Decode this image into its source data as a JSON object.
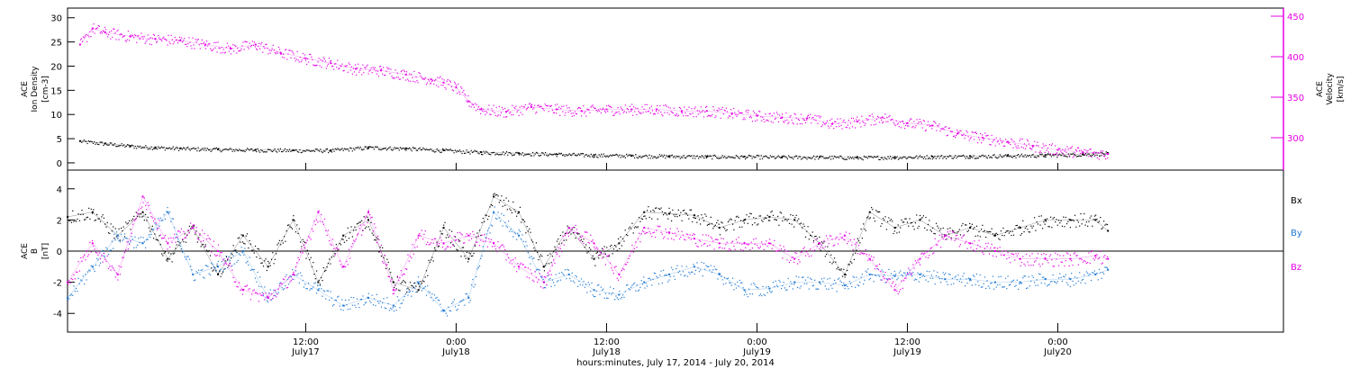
{
  "x_axis": {
    "label": "hours:minutes, July 17, 2014 - July 20, 2014",
    "range_hours": [
      -7,
      90
    ],
    "ticks": [
      {
        "hour": 12,
        "time": "12:00",
        "date": "July17"
      },
      {
        "hour": 24,
        "time": "0:00",
        "date": "July18"
      },
      {
        "hour": 36,
        "time": "12:00",
        "date": "July18"
      },
      {
        "hour": 48,
        "time": "0:00",
        "date": "July19"
      },
      {
        "hour": 60,
        "time": "12:00",
        "date": "July19"
      },
      {
        "hour": 72,
        "time": "0:00",
        "date": "July20"
      }
    ]
  },
  "chart_data": [
    {
      "type": "scatter",
      "panel": "plasma",
      "ylabel_left": [
        "ACE",
        "Ion Density",
        "[cm-3]"
      ],
      "ylabel_right": [
        "ACE",
        "Velocity",
        "[km/s]"
      ],
      "ylim_left": [
        -1.5,
        32
      ],
      "yticks_left": [
        0,
        5,
        10,
        15,
        20,
        25,
        30
      ],
      "ylim_right": [
        260,
        460
      ],
      "yticks_right": [
        300,
        350,
        400,
        450
      ],
      "series": [
        {
          "axis": "left",
          "color": "#000000",
          "x_hours": [
            -6,
            -4,
            -2,
            0,
            2,
            5,
            8,
            11,
            14,
            17,
            20,
            23,
            26,
            29,
            32,
            35,
            38,
            41,
            44,
            47,
            50,
            53,
            56,
            59,
            62,
            65,
            68,
            71,
            74,
            76
          ],
          "values": [
            4.5,
            4.0,
            3.5,
            3.2,
            3.0,
            2.8,
            2.7,
            2.6,
            2.6,
            3.2,
            3.0,
            2.6,
            2.2,
            2.0,
            1.8,
            1.6,
            1.5,
            1.4,
            1.3,
            1.3,
            1.2,
            1.2,
            1.1,
            1.2,
            1.3,
            1.4,
            1.5,
            1.6,
            1.8,
            2.0
          ]
        },
        {
          "axis": "right",
          "color": "#e600e6",
          "x_hours": [
            -6,
            -5,
            -4,
            -2,
            0,
            2,
            4,
            6,
            8,
            10,
            12,
            14,
            16,
            18,
            20,
            22,
            23,
            24,
            25,
            26,
            28,
            30,
            32,
            34,
            36,
            38,
            40,
            42,
            44,
            46,
            48,
            50,
            52,
            54,
            56,
            58,
            60,
            62,
            64,
            66,
            68,
            70,
            72,
            74,
            76
          ],
          "values": [
            415,
            435,
            430,
            425,
            422,
            420,
            415,
            410,
            415,
            405,
            398,
            392,
            385,
            383,
            378,
            372,
            368,
            362,
            345,
            335,
            332,
            338,
            335,
            333,
            335,
            335,
            335,
            333,
            333,
            330,
            327,
            325,
            324,
            317,
            320,
            325,
            318,
            315,
            305,
            300,
            295,
            290,
            285,
            282,
            280
          ]
        }
      ]
    },
    {
      "type": "scatter",
      "panel": "magnetic-field",
      "ylabel_left": [
        "ACE",
        "B",
        "[nT]"
      ],
      "ylim": [
        -5.2,
        5.2
      ],
      "yticks": [
        -4,
        -2,
        0,
        2,
        4
      ],
      "zero_line": true,
      "legend_position": "right",
      "series": [
        {
          "name": "Bx",
          "color": "#000000",
          "x_hours": [
            -7,
            -5,
            -3,
            -1,
            1,
            3,
            5,
            7,
            9,
            11,
            13,
            15,
            17,
            19,
            21,
            23,
            25,
            27,
            29,
            31,
            33,
            35,
            37,
            39,
            41,
            43,
            45,
            47,
            49,
            51,
            53,
            55,
            57,
            59,
            61,
            63,
            65,
            67,
            69,
            71,
            73,
            75,
            76
          ],
          "values": [
            2.2,
            2.5,
            1.0,
            2.5,
            -0.5,
            1.5,
            -1.5,
            1.0,
            -1.0,
            2.0,
            -2.0,
            1.0,
            2.0,
            -2.0,
            -2.5,
            1.5,
            -0.5,
            3.5,
            2.5,
            -1.0,
            1.5,
            -0.5,
            0.5,
            2.5,
            2.4,
            2.3,
            1.5,
            2.0,
            2.2,
            2.0,
            0.5,
            -1.5,
            2.5,
            1.5,
            2.0,
            1.0,
            1.5,
            1.0,
            1.5,
            2.0,
            2.0,
            2.0,
            1.3
          ]
        },
        {
          "name": "By",
          "color": "#1e78d2",
          "x_hours": [
            -7,
            -5,
            -3,
            -1,
            1,
            3,
            5,
            7,
            9,
            11,
            13,
            15,
            17,
            19,
            21,
            23,
            25,
            27,
            29,
            31,
            33,
            35,
            37,
            39,
            41,
            43,
            45,
            47,
            49,
            51,
            53,
            55,
            57,
            59,
            61,
            63,
            65,
            67,
            69,
            71,
            73,
            75,
            76
          ],
          "values": [
            -3.0,
            -1.0,
            1.0,
            0.5,
            2.5,
            -1.5,
            -1.0,
            0.0,
            -3.0,
            -1.5,
            -2.5,
            -3.5,
            -3.0,
            -3.5,
            -2.0,
            -3.8,
            -3.0,
            2.5,
            1.0,
            -2.0,
            -1.5,
            -2.5,
            -2.8,
            -2.0,
            -1.5,
            -1.0,
            -1.5,
            -2.5,
            -2.4,
            -2.0,
            -2.0,
            -2.2,
            -1.5,
            -1.6,
            -1.5,
            -1.8,
            -1.8,
            -2.0,
            -2.0,
            -1.8,
            -1.8,
            -1.5,
            -1.2
          ]
        },
        {
          "name": "Bz",
          "color": "#e600e6",
          "x_hours": [
            -7,
            -5,
            -3,
            -1,
            1,
            3,
            5,
            7,
            9,
            11,
            13,
            15,
            17,
            19,
            21,
            23,
            25,
            27,
            29,
            31,
            33,
            35,
            37,
            39,
            41,
            43,
            45,
            47,
            49,
            51,
            53,
            55,
            57,
            59,
            61,
            63,
            65,
            67,
            69,
            71,
            73,
            75,
            76
          ],
          "values": [
            -2.0,
            0.5,
            -1.5,
            3.5,
            0.5,
            1.5,
            0.0,
            -2.5,
            -3.0,
            -1.5,
            2.5,
            -1.0,
            2.5,
            -2.5,
            1.0,
            0.5,
            1.0,
            0.5,
            -1.0,
            -2.0,
            1.5,
            0.5,
            -1.5,
            1.5,
            1.2,
            0.8,
            0.5,
            0.5,
            0.5,
            -0.5,
            0.5,
            1.0,
            -0.5,
            -2.5,
            -0.5,
            1.0,
            0.5,
            0.0,
            -0.5,
            -0.5,
            -0.5,
            -0.3,
            -0.5
          ]
        }
      ]
    }
  ]
}
